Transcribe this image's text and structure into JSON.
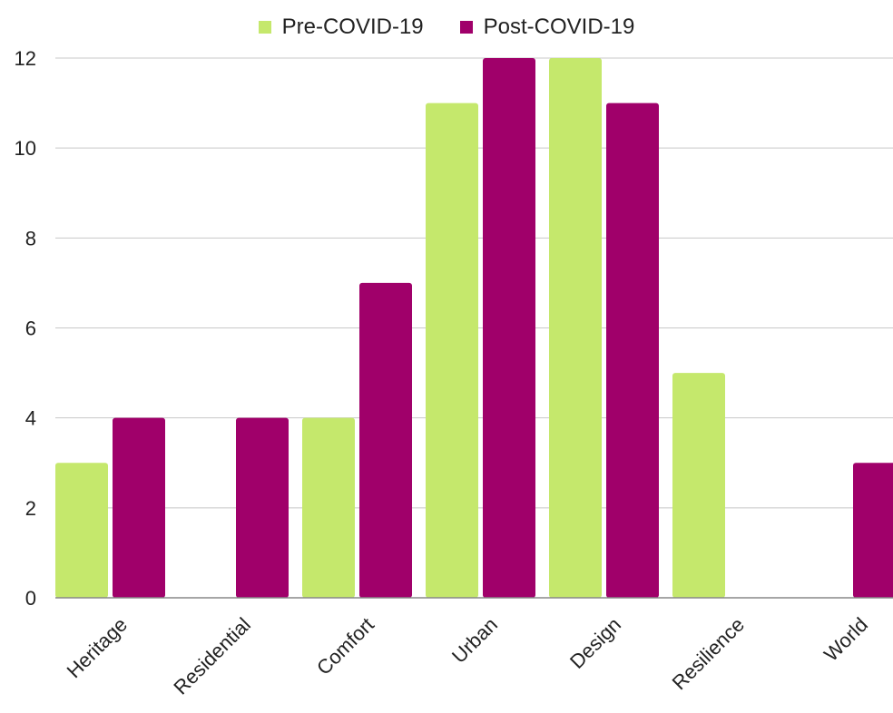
{
  "chart_data": {
    "type": "bar",
    "title": "",
    "xlabel": "",
    "ylabel": "",
    "categories": [
      "Heritage",
      "Residential",
      "Comfort",
      "Urban",
      "Design",
      "Resilience",
      "World"
    ],
    "series": [
      {
        "name": "Pre-COVID-19",
        "color": "#c5e86c",
        "values": [
          3,
          0,
          4,
          11,
          12,
          5,
          0
        ]
      },
      {
        "name": "Post-COVID-19",
        "color": "#a0006a",
        "values": [
          4,
          4,
          7,
          12,
          11,
          0,
          3
        ]
      }
    ],
    "ylim": [
      0,
      12
    ],
    "yticks": [
      0,
      2,
      4,
      6,
      8,
      10,
      12
    ],
    "grid": true,
    "legend_position": "top-center"
  }
}
